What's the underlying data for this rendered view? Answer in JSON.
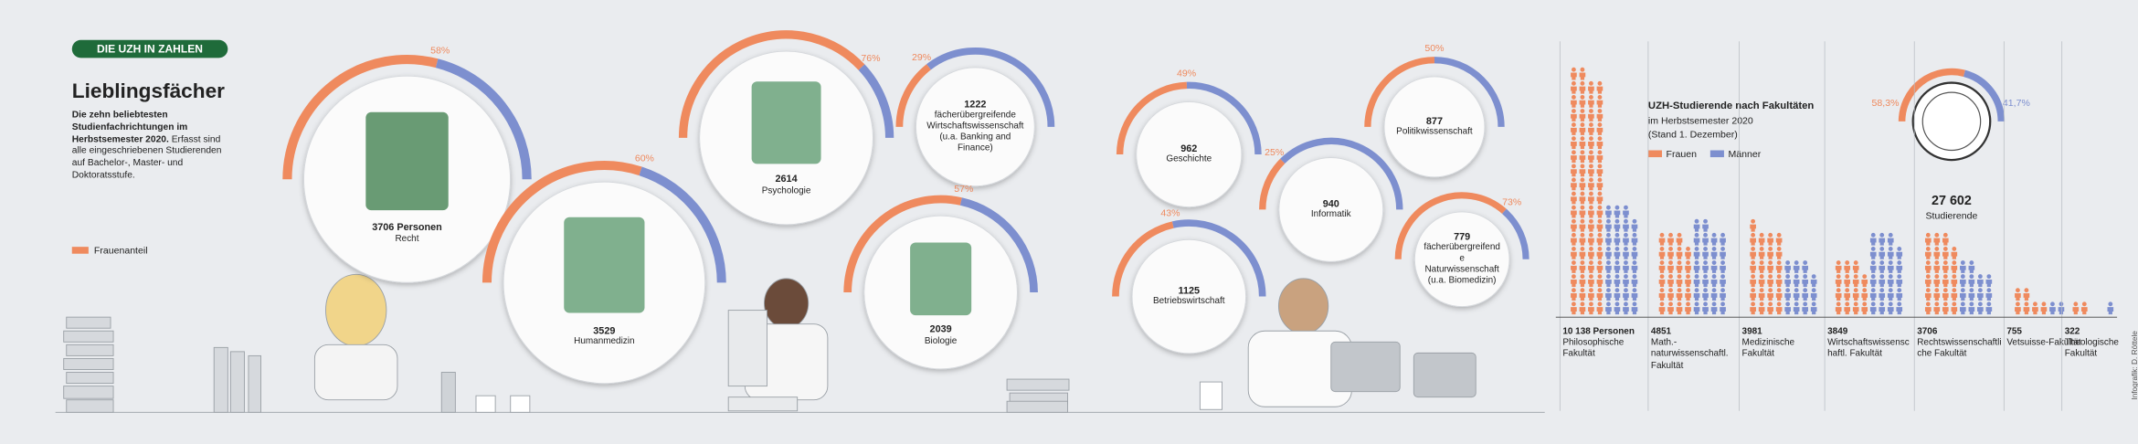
{
  "header": {
    "badge": "DIE UZH IN ZAHLEN",
    "title": "Lieblingsfächer",
    "intro_bold": "Die zehn beliebtesten Studienfachrichtungen im Herbstsemester 2020.",
    "intro": "Erfasst sind alle eingeschriebenen Studierenden auf Bachelor-, Master- und Doktoratsstufe.",
    "legend": "Frauenanteil"
  },
  "subjects": [
    {
      "count": 3706,
      "count_label": "3706 Personen",
      "name": "Recht",
      "women_pct": 58,
      "women_pct_label": "58%"
    },
    {
      "count": 3529,
      "name": "Humanmedizin",
      "women_pct": 60,
      "women_pct_label": "60%"
    },
    {
      "count": 2614,
      "name": "Psychologie",
      "women_pct": 76,
      "women_pct_label": "76%"
    },
    {
      "count": 1222,
      "name": "fächerübergreifende Wirtschaftswissenschaft (u.a. Banking and Finance)",
      "women_pct": 29,
      "women_pct_label": "29%"
    },
    {
      "count": 2039,
      "name": "Biologie",
      "women_pct": 57,
      "women_pct_label": "57%"
    },
    {
      "count": 962,
      "name": "Geschichte",
      "women_pct": 49,
      "women_pct_label": "49%"
    },
    {
      "count": 940,
      "name": "Informatik",
      "women_pct": 25,
      "women_pct_label": "25%"
    },
    {
      "count": 877,
      "name": "Politikwissenschaft",
      "women_pct": 50,
      "women_pct_label": "50%"
    },
    {
      "count": 1125,
      "name": "Betriebswirtschaft",
      "women_pct": 43,
      "women_pct_label": "43%"
    },
    {
      "count": 779,
      "name": "fächerübergreifende Naturwissenschaft (u.a. Biomedizin)",
      "women_pct": 73,
      "women_pct_label": "73%"
    }
  ],
  "faculties": {
    "title": "UZH-Studierende nach Fakultäten",
    "subtitle": "im Herbstsemester 2020",
    "note": "(Stand 1. Dezember)",
    "legend": [
      "Frauen",
      "Männer"
    ],
    "total": 27602,
    "total_label": "27 602",
    "total_name": "Studierende",
    "women_share": 58.3,
    "women_share_label": "58,3%",
    "men_share": 41.7,
    "men_share_label": "41,7%",
    "items": [
      {
        "count": 10138,
        "count_label": "10 138 Personen",
        "name": "Philosophische Fakultät",
        "women": 7000,
        "men": 3138
      },
      {
        "count": 4851,
        "name": "Math.-naturwissenschaftl. Fakultät",
        "women": 2300,
        "men": 2551
      },
      {
        "count": 3981,
        "name": "Medizinische Fakultät",
        "women": 2500,
        "men": 1481
      },
      {
        "count": 3849,
        "name": "Wirtschaftswissenschaftl. Fakultät",
        "women": 1500,
        "men": 2349
      },
      {
        "count": 3706,
        "name": "Rechtswissenschaftliche Fakultät",
        "women": 2300,
        "men": 1406
      },
      {
        "count": 755,
        "name": "Vetsuisse-Fakultät",
        "women": 600,
        "men": 155
      },
      {
        "count": 322,
        "name": "Theologische Fakultät",
        "women": 190,
        "men": 132
      }
    ]
  },
  "credit": "Infografik: D. Röttele"
}
